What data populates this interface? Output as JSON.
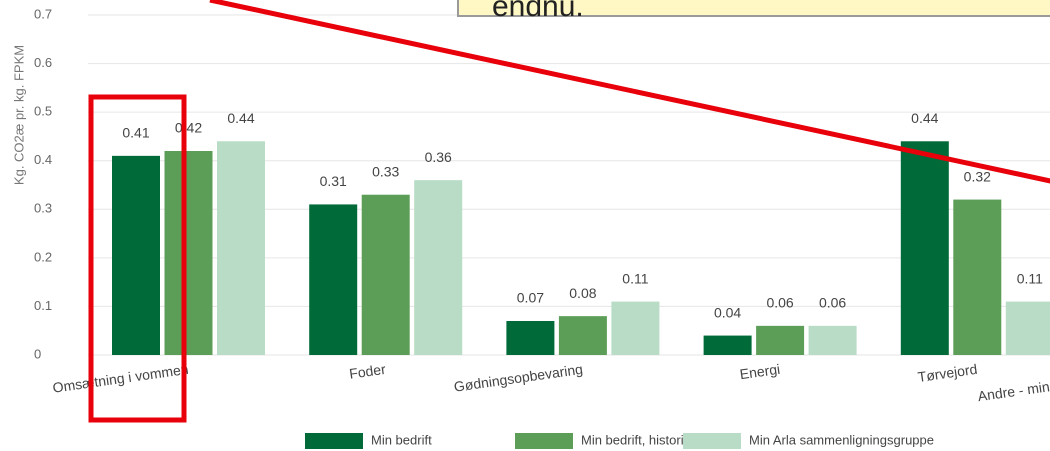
{
  "chart_data": {
    "type": "bar",
    "y_label": "Kg. CO2æ pr. kg. FPKM",
    "categories": [
      "Omsætning i vommen",
      "Foder",
      "Gødningsopbevaring",
      "Energi",
      "Tørvejord",
      "Andre - mindr"
    ],
    "series": [
      {
        "name": "Min bedrift",
        "color": "#006a38",
        "values": [
          0.41,
          0.31,
          0.07,
          0.04,
          0.44,
          null
        ]
      },
      {
        "name": "Min bedrift, historisk",
        "color": "#5c9e58",
        "values": [
          0.42,
          0.33,
          0.08,
          0.06,
          0.32,
          null
        ]
      },
      {
        "name": "Min Arla sammenligningsgruppe",
        "color": "#b8dcc6",
        "values": [
          0.44,
          0.36,
          0.11,
          0.06,
          0.11,
          null
        ]
      }
    ],
    "ylim": [
      0,
      0.7
    ],
    "yticks": [
      0,
      0.1,
      0.2,
      0.3,
      0.4,
      0.5,
      0.6,
      0.7
    ],
    "grid": true,
    "legend": "bottom",
    "annotation": "endnu."
  }
}
